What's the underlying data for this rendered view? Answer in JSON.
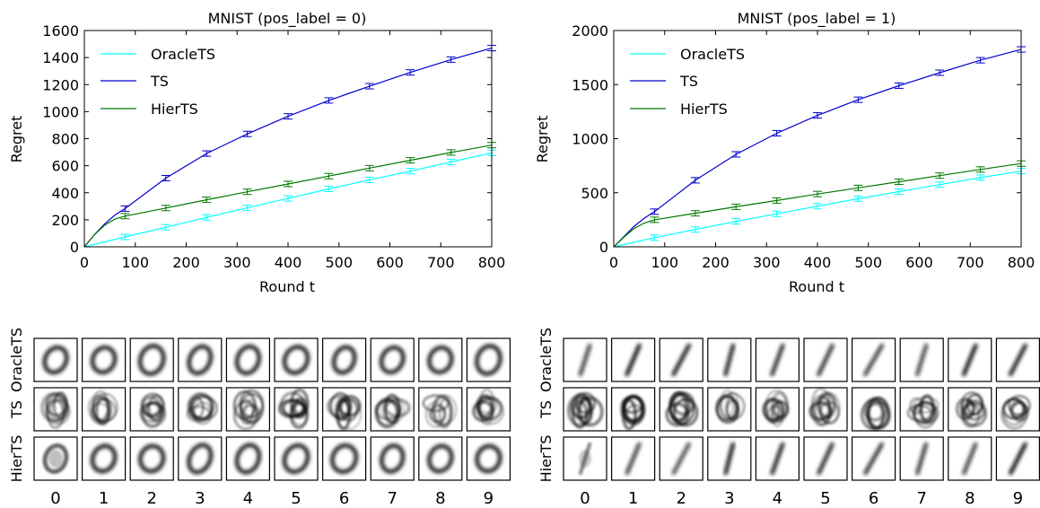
{
  "chart_data": [
    {
      "type": "line",
      "title": "MNIST (pos_label = 0)",
      "xlabel": "Round t",
      "ylabel": "Regret",
      "xlim": [
        0,
        800
      ],
      "ylim": [
        0,
        1600
      ],
      "xticks": [
        "0",
        "100",
        "200",
        "300",
        "400",
        "500",
        "600",
        "700",
        "800"
      ],
      "yticks": [
        "0",
        "200",
        "400",
        "600",
        "800",
        "1000",
        "1200",
        "1400",
        "1600"
      ],
      "legend_position": "top-left",
      "grid": false,
      "series": [
        {
          "name": "OracleTS",
          "color": "#00ffff",
          "x": [
            0,
            80,
            160,
            240,
            320,
            400,
            480,
            560,
            640,
            720,
            800
          ],
          "y": [
            0,
            73,
            145,
            218,
            288,
            358,
            428,
            495,
            560,
            628,
            695
          ]
        },
        {
          "name": "TS",
          "color": "#0000cc",
          "x": [
            0,
            20,
            40,
            60,
            80,
            160,
            240,
            320,
            400,
            480,
            560,
            640,
            720,
            800
          ],
          "y": [
            0,
            90,
            170,
            235,
            283,
            508,
            690,
            835,
            965,
            1083,
            1188,
            1290,
            1385,
            1470
          ]
        },
        {
          "name": "HierTS",
          "color": "#007700",
          "x": [
            0,
            20,
            40,
            60,
            80,
            160,
            240,
            320,
            400,
            480,
            560,
            640,
            720,
            800
          ],
          "y": [
            0,
            90,
            160,
            205,
            227,
            287,
            348,
            407,
            465,
            523,
            582,
            640,
            698,
            752
          ]
        }
      ]
    },
    {
      "type": "line",
      "title": "MNIST (pos_label = 1)",
      "xlabel": "Round t",
      "ylabel": "Regret",
      "xlim": [
        0,
        800
      ],
      "ylim": [
        0,
        2000
      ],
      "xticks": [
        "0",
        "100",
        "200",
        "300",
        "400",
        "500",
        "600",
        "700",
        "800"
      ],
      "yticks": [
        "0",
        "500",
        "1000",
        "1500",
        "2000"
      ],
      "legend_position": "top-left",
      "grid": false,
      "series": [
        {
          "name": "OracleTS",
          "color": "#00ffff",
          "x": [
            0,
            80,
            160,
            240,
            320,
            400,
            480,
            560,
            640,
            720,
            800
          ],
          "y": [
            0,
            85,
            160,
            235,
            305,
            375,
            445,
            510,
            575,
            640,
            700
          ]
        },
        {
          "name": "TS",
          "color": "#0000cc",
          "x": [
            0,
            20,
            40,
            60,
            80,
            160,
            240,
            320,
            400,
            480,
            560,
            640,
            720,
            800
          ],
          "y": [
            0,
            95,
            190,
            265,
            325,
            615,
            855,
            1050,
            1215,
            1360,
            1490,
            1610,
            1725,
            1825
          ]
        },
        {
          "name": "HierTS",
          "color": "#007700",
          "x": [
            0,
            20,
            40,
            60,
            80,
            160,
            240,
            320,
            400,
            480,
            560,
            640,
            720,
            800
          ],
          "y": [
            0,
            90,
            170,
            220,
            250,
            310,
            370,
            428,
            488,
            545,
            602,
            658,
            715,
            770
          ]
        }
      ]
    }
  ],
  "image_grids": [
    {
      "digit": 0,
      "row_labels": [
        "OracleTS",
        "TS",
        "HierTS"
      ],
      "col_labels": [
        "0",
        "1",
        "2",
        "3",
        "4",
        "5",
        "6",
        "7",
        "8",
        "9"
      ]
    },
    {
      "digit": 1,
      "row_labels": [
        "OracleTS",
        "TS",
        "HierTS"
      ],
      "col_labels": [
        "0",
        "1",
        "2",
        "3",
        "4",
        "5",
        "6",
        "7",
        "8",
        "9"
      ]
    }
  ]
}
